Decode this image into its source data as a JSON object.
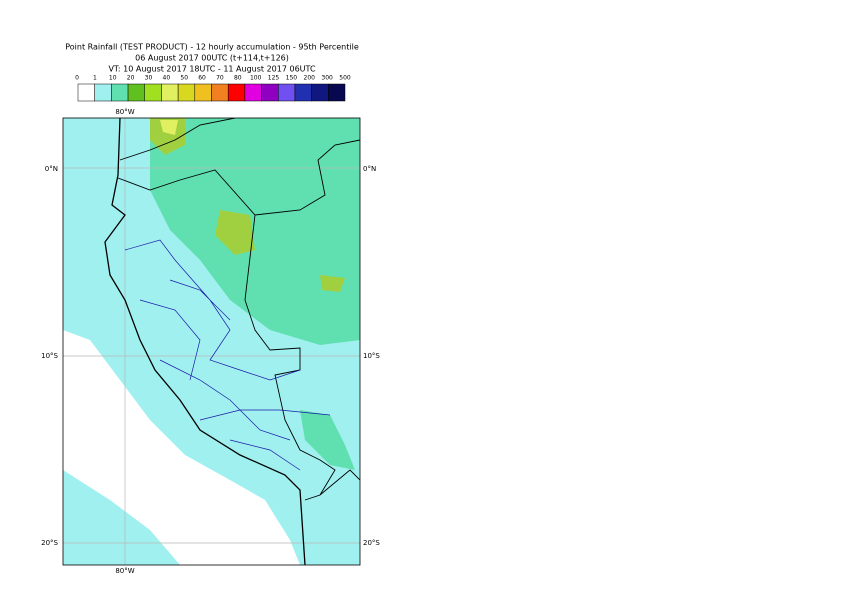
{
  "header": {
    "line1": "Point Rainfall (TEST PRODUCT) - 12 hourly accumulation - 95th Percentile",
    "line2": "06 August 2017 00UTC (t+114,t+126)",
    "line3": "VT: 10 August 2017 18UTC - 11 August 2017 06UTC"
  },
  "legend": {
    "labels": [
      "0",
      "1",
      "10",
      "20",
      "30",
      "40",
      "50",
      "60",
      "70",
      "80",
      "100",
      "125",
      "150",
      "200",
      "300",
      "500"
    ],
    "colors": [
      "#ffffff",
      "#a0f0f0",
      "#60e0b0",
      "#60c020",
      "#a0e020",
      "#e0f060",
      "#d8d820",
      "#f0c020",
      "#f08020",
      "#ff0000",
      "#e000e0",
      "#9000c0",
      "#7050f0",
      "#2030b0",
      "#101880",
      "#080850"
    ]
  },
  "axes": {
    "top": "80°W",
    "bottom": "80°W",
    "left": [
      "0°N",
      "10°S",
      "20°S"
    ],
    "right": [
      "0°N",
      "10°S",
      "20°S"
    ]
  }
}
